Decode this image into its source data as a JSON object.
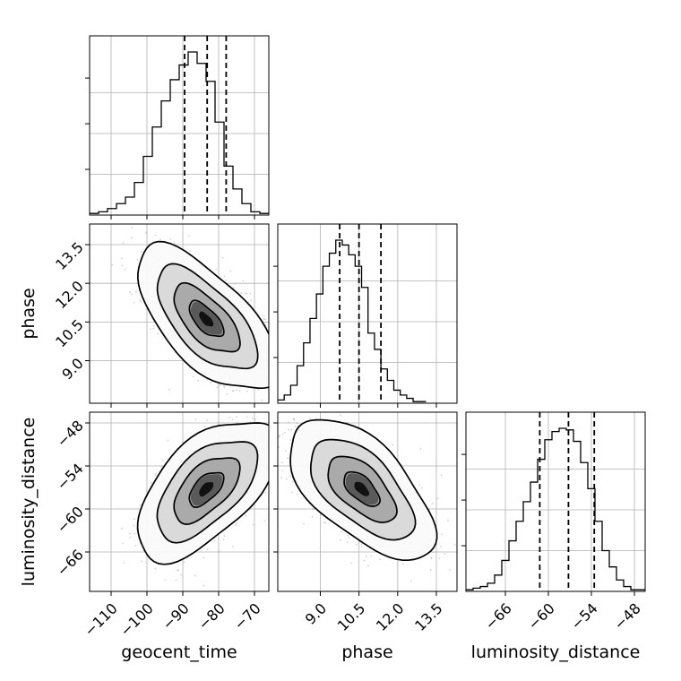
{
  "chart_data": {
    "type": "corner",
    "parameters": [
      "geocent_time",
      "phase",
      "luminosity_distance"
    ],
    "grid": true,
    "colors": {
      "line": "#000000",
      "grid": "#b0b0b0",
      "scatter": "#9a9a9a"
    },
    "axes": {
      "geocent_time": {
        "range": [
          -116,
          -66
        ],
        "ticks": [
          -110,
          -100,
          -90,
          -80,
          -70
        ],
        "tick_labels": [
          "−110",
          "−100",
          "−90",
          "−80",
          "−70"
        ]
      },
      "phase": {
        "range": [
          7.35,
          14.3
        ],
        "ticks": [
          9.0,
          10.5,
          12.0,
          13.5
        ],
        "tick_labels": [
          "9.0",
          "10.5",
          "12.0",
          "13.5"
        ]
      },
      "luminosity_distance": {
        "range": [
          -71.5,
          -46.5
        ],
        "ticks": [
          -66,
          -60,
          -54,
          -48
        ],
        "tick_labels": [
          "−66",
          "−60",
          "−54",
          "−48"
        ]
      }
    },
    "marginals": [
      {
        "parameter": "geocent_time",
        "bin_edges": [
          -116,
          -113.5,
          -111,
          -108.5,
          -106,
          -103.5,
          -101,
          -98.5,
          -96,
          -93.5,
          -91,
          -88.5,
          -86,
          -83.5,
          -81,
          -78.5,
          -76,
          -73.5,
          -71,
          -68.5,
          -66
        ],
        "counts": [
          0.01,
          0.02,
          0.04,
          0.07,
          0.11,
          0.2,
          0.36,
          0.54,
          0.7,
          0.83,
          0.92,
          1.0,
          0.93,
          0.82,
          0.57,
          0.3,
          0.16,
          0.07,
          0.02,
          0.01
        ],
        "quantiles": [
          -89.5,
          -83.2,
          -77.9
        ]
      },
      {
        "parameter": "phase",
        "bin_edges": [
          7.35,
          7.6,
          7.85,
          8.1,
          8.35,
          8.6,
          8.85,
          9.1,
          9.35,
          9.6,
          9.85,
          10.1,
          10.35,
          10.6,
          10.85,
          11.1,
          11.35,
          11.6,
          11.85,
          12.1,
          12.35,
          12.6,
          12.85,
          13.1
        ],
        "counts": [
          0.02,
          0.05,
          0.11,
          0.23,
          0.37,
          0.52,
          0.67,
          0.84,
          0.92,
          1.0,
          0.97,
          0.91,
          0.84,
          0.71,
          0.43,
          0.33,
          0.21,
          0.14,
          0.08,
          0.05,
          0.03,
          0.01,
          0.01
        ],
        "quantiles": [
          9.75,
          10.5,
          11.35
        ]
      },
      {
        "parameter": "luminosity_distance",
        "bin_edges": [
          -71.5,
          -70.5,
          -69.5,
          -68.5,
          -67.5,
          -66.5,
          -65.5,
          -64.5,
          -63.5,
          -62.5,
          -61.5,
          -60.5,
          -59.5,
          -58.5,
          -57.5,
          -56.5,
          -55.5,
          -54.5,
          -53.5,
          -52.5,
          -51.5,
          -50.5,
          -49.5,
          -48.5,
          -47.5,
          -46.5
        ],
        "counts": [
          0.01,
          0.02,
          0.03,
          0.05,
          0.1,
          0.19,
          0.31,
          0.43,
          0.55,
          0.67,
          0.81,
          0.93,
          0.98,
          1.0,
          0.99,
          0.92,
          0.79,
          0.63,
          0.43,
          0.25,
          0.15,
          0.07,
          0.03,
          0.01,
          0.01
        ],
        "quantiles": [
          -61.2,
          -57.2,
          -53.6
        ]
      }
    ],
    "joints": [
      {
        "x": "geocent_time",
        "y": "phase",
        "mean": [
          -83.5,
          10.6
        ],
        "std": [
          8.0,
          1.15
        ],
        "correlation": -0.65
      },
      {
        "x": "geocent_time",
        "y": "luminosity_distance",
        "mean": [
          -83.5,
          -57.2
        ],
        "std": [
          8.0,
          4.0
        ],
        "correlation": 0.58
      },
      {
        "x": "phase",
        "y": "luminosity_distance",
        "mean": [
          10.6,
          -57.2
        ],
        "std": [
          1.15,
          4.0
        ],
        "correlation": -0.6
      }
    ]
  }
}
